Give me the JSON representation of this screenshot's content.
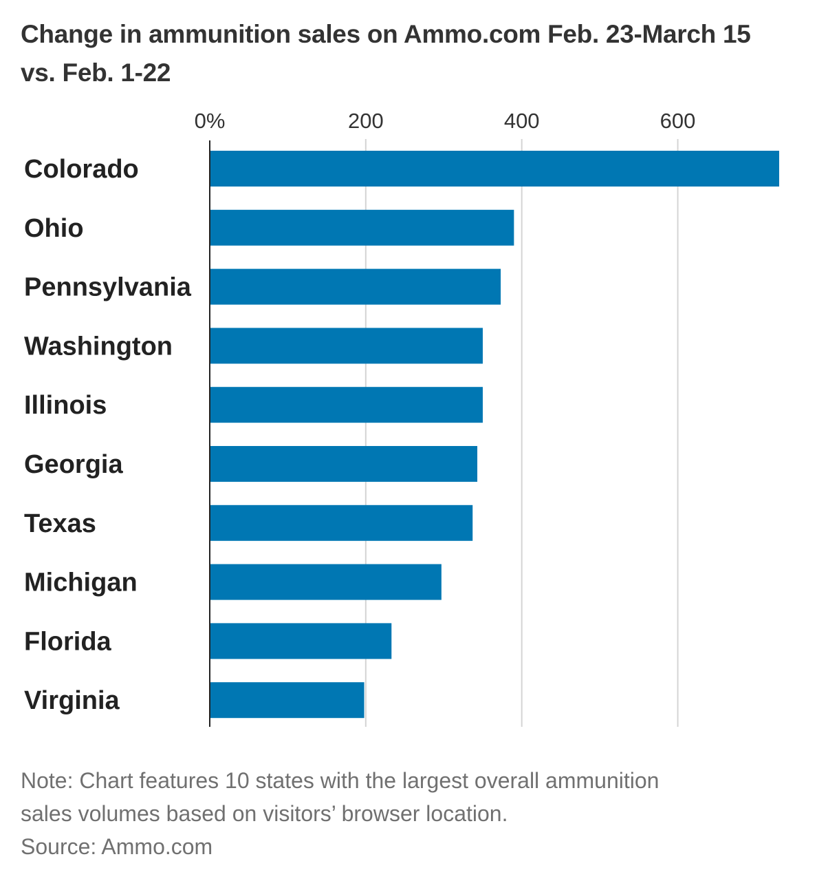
{
  "chart_data": {
    "type": "bar",
    "orientation": "horizontal",
    "title": "Change in ammunition sales on Ammo.com Feb. 23-March 15 vs. Feb. 1-22",
    "categories": [
      "Colorado",
      "Ohio",
      "Pennsylvania",
      "Washington",
      "Illinois",
      "Georgia",
      "Texas",
      "Michigan",
      "Florida",
      "Virginia"
    ],
    "values": [
      730,
      390,
      373,
      350,
      350,
      343,
      337,
      297,
      233,
      198
    ],
    "ticks": [
      0,
      200,
      400,
      600
    ],
    "tick_labels": [
      "0%",
      "200",
      "400",
      "600"
    ],
    "xlim": [
      0,
      730
    ],
    "grid": true,
    "bar_color": "#0077b3"
  },
  "notes": {
    "note_line1": "Note: Chart features 10 states with the largest overall ammunition",
    "note_line2": "sales volumes based on visitors’ browser location.",
    "source": "Source: Ammo.com"
  }
}
